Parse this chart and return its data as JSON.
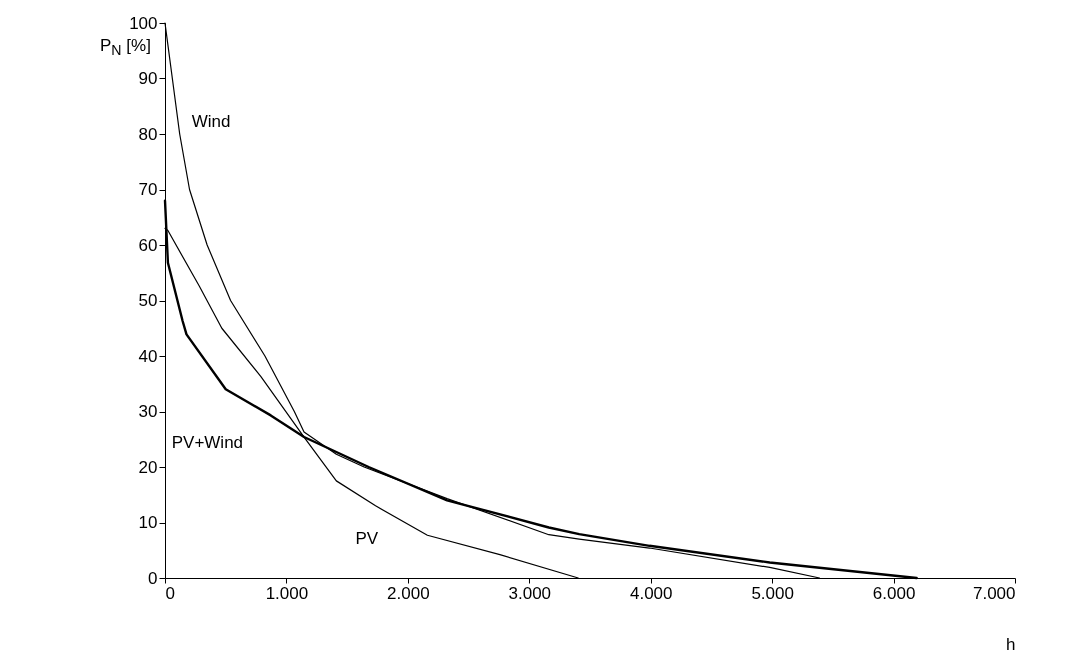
{
  "chart_data": {
    "type": "line",
    "xlabel": "h",
    "ylabel": "P$_{N}$ [%]",
    "xlim": [
      0,
      7000
    ],
    "ylim": [
      0,
      100
    ],
    "xticks": [
      {
        "value": 0,
        "label": "0"
      },
      {
        "value": 1000,
        "label": "1.000"
      },
      {
        "value": 2000,
        "label": "2.000"
      },
      {
        "value": 3000,
        "label": "3.000"
      },
      {
        "value": 4000,
        "label": "4.000"
      },
      {
        "value": 5000,
        "label": "5.000"
      },
      {
        "value": 6000,
        "label": "6.000"
      },
      {
        "value": 7000,
        "label": "7.000"
      }
    ],
    "yticks": [
      0,
      10,
      20,
      30,
      40,
      50,
      60,
      70,
      80,
      90,
      100
    ],
    "grid": false,
    "marker": "none",
    "series": [
      {
        "name": "Wind",
        "color": "#000000",
        "x": [
          0,
          121,
          202,
          347,
          540,
          823,
          1065,
          1145,
          1411,
          1640,
          2323,
          3161,
          3411,
          3990,
          4980,
          5390
        ],
        "values": [
          100,
          80,
          70,
          60,
          50,
          40,
          30,
          26.3,
          22.3,
          20,
          14.3,
          7.8,
          7.0,
          5.4,
          1.9,
          0
        ]
      },
      {
        "name": "PV",
        "color": "#000000",
        "x": [
          0,
          24,
          282,
          468,
          790,
          1145,
          1411,
          1734,
          2161,
          2758,
          3403
        ],
        "values": [
          63,
          62.6,
          52.6,
          45,
          36.3,
          25.4,
          17.5,
          13,
          7.7,
          4.2,
          0
        ]
      },
      {
        "name": "PV+Wind",
        "color": "#000000",
        "x": [
          0,
          24,
          145,
          177,
          500,
          871,
          1145,
          1677,
          2323,
          3161,
          3411,
          3990,
          4980,
          6190
        ],
        "values": [
          68,
          56.8,
          46.3,
          43.9,
          34,
          29.3,
          25.4,
          20,
          14,
          9.1,
          7.9,
          5.8,
          2.8,
          0
        ]
      }
    ]
  }
}
